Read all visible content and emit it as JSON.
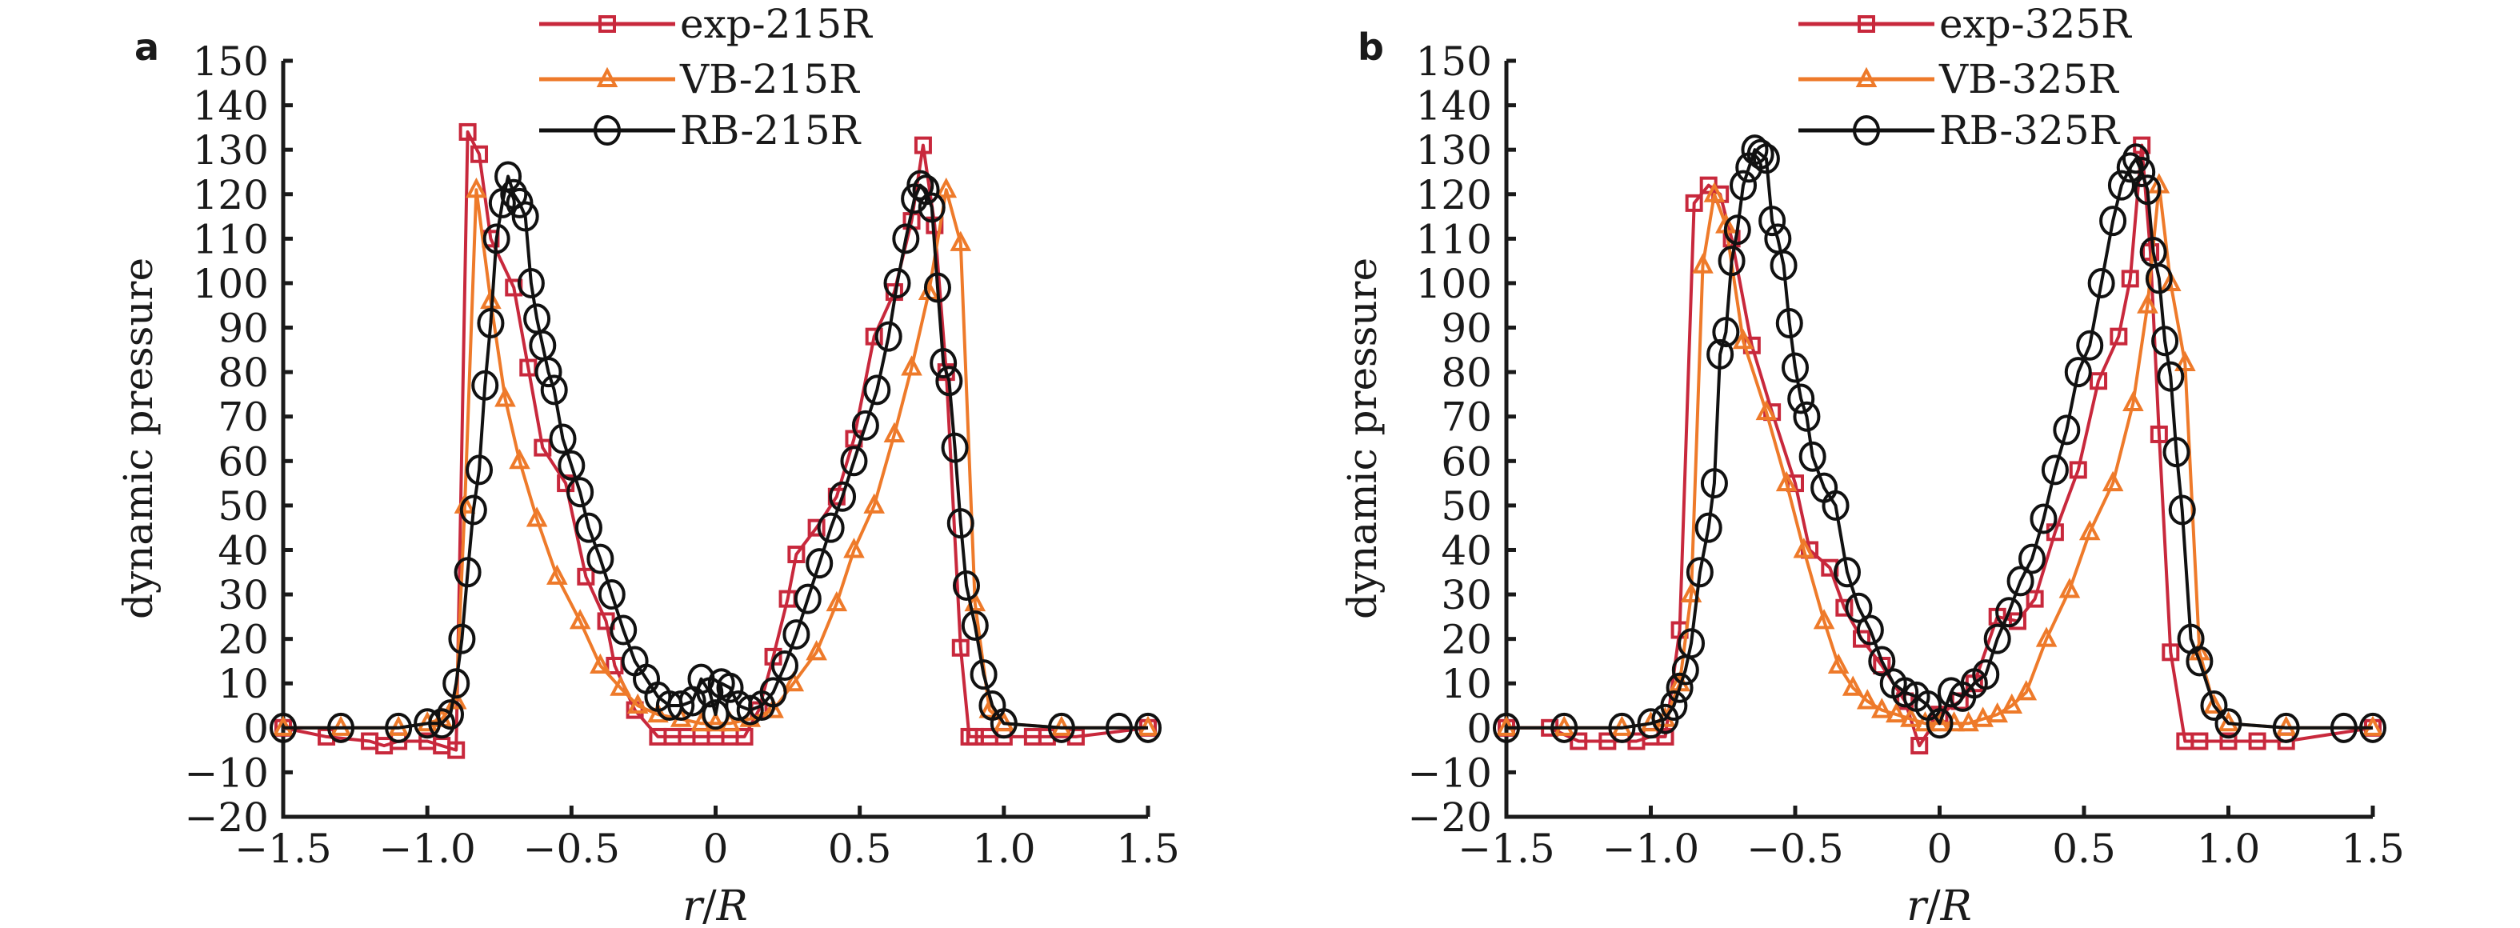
{
  "chart_data": [
    {
      "panel": "a",
      "type": "line",
      "title": "",
      "xlabel": "r/R",
      "ylabel": "dynamic pressure",
      "xlim": [
        -1.5,
        1.5
      ],
      "ylim": [
        -20,
        150
      ],
      "xticks": [
        -1.5,
        -1.0,
        -0.5,
        0,
        0.5,
        1.0,
        1.5
      ],
      "xtick_labels": [
        "−1.5",
        "−1.0",
        "−0.5",
        "0",
        "0.5",
        "1.0",
        "1.5"
      ],
      "yticks": [
        -20,
        -10,
        0,
        10,
        20,
        30,
        40,
        50,
        60,
        70,
        80,
        90,
        100,
        110,
        120,
        130,
        140,
        150
      ],
      "ytick_labels": [
        "−20",
        "−10",
        "0",
        "10",
        "20",
        "30",
        "40",
        "50",
        "60",
        "70",
        "80",
        "90",
        "100",
        "110",
        "120",
        "130",
        "140",
        "150"
      ],
      "grid": false,
      "legend_position": "top-center",
      "series": [
        {
          "name": "exp-215R",
          "color": "#c8283c",
          "marker": "square",
          "x": [
            -1.5,
            -1.35,
            -1.2,
            -1.15,
            -1.1,
            -1.0,
            -0.95,
            -0.9,
            -0.86,
            -0.82,
            -0.78,
            -0.7,
            -0.65,
            -0.6,
            -0.52,
            -0.45,
            -0.38,
            -0.35,
            -0.28,
            -0.2,
            -0.15,
            -0.1,
            -0.05,
            0.0,
            0.05,
            0.1,
            0.15,
            0.2,
            0.25,
            0.28,
            0.35,
            0.42,
            0.48,
            0.55,
            0.62,
            0.68,
            0.72,
            0.76,
            0.8,
            0.85,
            0.88,
            0.9,
            0.95,
            1.0,
            1.1,
            1.15,
            1.25,
            1.5
          ],
          "y": [
            0,
            -2,
            -3,
            -4,
            -3,
            -3,
            -4,
            -5,
            134,
            129,
            110,
            99,
            81,
            63,
            55,
            34,
            24,
            14,
            4,
            -2,
            -2,
            -2,
            -2,
            -2,
            -2,
            -2,
            4,
            16,
            29,
            39,
            45,
            52,
            65,
            88,
            98,
            114,
            131,
            113,
            80,
            18,
            -2,
            -2,
            -2,
            -2,
            -2,
            -2,
            -2,
            0
          ]
        },
        {
          "name": "VB-215R",
          "color": "#ee7a2a",
          "marker": "triangle",
          "x": [
            -1.5,
            -1.3,
            -1.1,
            -1.0,
            -0.95,
            -0.9,
            -0.87,
            -0.83,
            -0.78,
            -0.73,
            -0.68,
            -0.62,
            -0.55,
            -0.47,
            -0.4,
            -0.33,
            -0.27,
            -0.2,
            -0.12,
            -0.05,
            0.0,
            0.05,
            0.12,
            0.2,
            0.27,
            0.35,
            0.42,
            0.48,
            0.55,
            0.62,
            0.68,
            0.74,
            0.8,
            0.85,
            0.9,
            0.95,
            1.0,
            1.2,
            1.5
          ],
          "y": [
            0,
            0,
            0,
            1,
            2,
            6,
            50,
            121,
            96,
            74,
            60,
            47,
            34,
            24,
            14,
            9,
            5,
            3,
            2,
            1,
            1,
            1,
            2,
            4,
            10,
            17,
            28,
            40,
            50,
            66,
            81,
            98,
            121,
            109,
            28,
            4,
            1,
            0,
            0
          ]
        },
        {
          "name": "RB-215R",
          "color": "#111111",
          "marker": "circle",
          "x": [
            -1.5,
            -1.3,
            -1.1,
            -1.0,
            -0.95,
            -0.92,
            -0.9,
            -0.88,
            -0.86,
            -0.84,
            -0.82,
            -0.8,
            -0.78,
            -0.76,
            -0.74,
            -0.72,
            -0.7,
            -0.68,
            -0.66,
            -0.64,
            -0.62,
            -0.6,
            -0.58,
            -0.56,
            -0.53,
            -0.5,
            -0.47,
            -0.44,
            -0.4,
            -0.36,
            -0.32,
            -0.28,
            -0.24,
            -0.2,
            -0.16,
            -0.12,
            -0.08,
            -0.05,
            -0.02,
            0.0,
            0.02,
            0.05,
            0.08,
            0.12,
            0.16,
            0.2,
            0.24,
            0.28,
            0.32,
            0.36,
            0.4,
            0.44,
            0.48,
            0.52,
            0.56,
            0.6,
            0.63,
            0.66,
            0.69,
            0.71,
            0.73,
            0.75,
            0.77,
            0.79,
            0.81,
            0.83,
            0.85,
            0.87,
            0.9,
            0.93,
            0.96,
            1.0,
            1.2,
            1.4,
            1.5
          ],
          "y": [
            0,
            0,
            0,
            1,
            1,
            3,
            10,
            20,
            35,
            49,
            58,
            77,
            91,
            110,
            118,
            124,
            120,
            118,
            115,
            100,
            92,
            86,
            80,
            76,
            65,
            59,
            53,
            45,
            38,
            30,
            22,
            15,
            11,
            7,
            5,
            5,
            6,
            11,
            8,
            3,
            10,
            9,
            5,
            4,
            5,
            8,
            14,
            21,
            29,
            37,
            45,
            52,
            60,
            68,
            76,
            88,
            100,
            110,
            119,
            122,
            121,
            117,
            99,
            82,
            78,
            63,
            46,
            32,
            23,
            12,
            5,
            1,
            0,
            0,
            0
          ]
        }
      ]
    },
    {
      "panel": "b",
      "type": "line",
      "title": "",
      "xlabel": "r/R",
      "ylabel": "dynamic pressure",
      "xlim": [
        -1.5,
        1.5
      ],
      "ylim": [
        -20,
        150
      ],
      "xticks": [
        -1.5,
        -1.0,
        -0.5,
        0,
        0.5,
        1.0,
        1.5
      ],
      "xtick_labels": [
        "−1.5",
        "−1.0",
        "−0.5",
        "0",
        "0.5",
        "1.0",
        "1.5"
      ],
      "yticks": [
        -20,
        -10,
        0,
        10,
        20,
        30,
        40,
        50,
        60,
        70,
        80,
        90,
        100,
        110,
        120,
        130,
        140,
        150
      ],
      "ytick_labels": [
        "−20",
        "−10",
        "0",
        "10",
        "20",
        "30",
        "40",
        "50",
        "60",
        "70",
        "80",
        "90",
        "100",
        "110",
        "120",
        "130",
        "140",
        "150"
      ],
      "grid": false,
      "legend_position": "top-center",
      "series": [
        {
          "name": "exp-325R",
          "color": "#c8283c",
          "marker": "square",
          "x": [
            -1.5,
            -1.35,
            -1.25,
            -1.15,
            -1.05,
            -1.0,
            -0.95,
            -0.9,
            -0.85,
            -0.8,
            -0.76,
            -0.72,
            -0.65,
            -0.58,
            -0.5,
            -0.45,
            -0.38,
            -0.33,
            -0.27,
            -0.2,
            -0.12,
            -0.07,
            0.0,
            0.07,
            0.12,
            0.2,
            0.27,
            0.33,
            0.4,
            0.48,
            0.55,
            0.62,
            0.66,
            0.7,
            0.73,
            0.76,
            0.8,
            0.85,
            0.9,
            1.0,
            1.1,
            1.2,
            1.5
          ],
          "y": [
            0,
            0,
            -3,
            -3,
            -3,
            -2,
            -2,
            22,
            118,
            122,
            120,
            110,
            86,
            71,
            55,
            40,
            36,
            27,
            20,
            14,
            6,
            -4,
            3,
            6,
            10,
            25,
            24,
            29,
            44,
            58,
            78,
            88,
            101,
            131,
            107,
            66,
            17,
            -3,
            -3,
            -3,
            -3,
            -3,
            0
          ]
        },
        {
          "name": "VB-325R",
          "color": "#ee7a2a",
          "marker": "triangle",
          "x": [
            -1.5,
            -1.3,
            -1.1,
            -1.0,
            -0.95,
            -0.9,
            -0.86,
            -0.82,
            -0.78,
            -0.74,
            -0.68,
            -0.6,
            -0.53,
            -0.47,
            -0.4,
            -0.35,
            -0.3,
            -0.25,
            -0.2,
            -0.15,
            -0.1,
            -0.05,
            0.0,
            0.05,
            0.1,
            0.15,
            0.2,
            0.25,
            0.3,
            0.37,
            0.45,
            0.52,
            0.6,
            0.67,
            0.72,
            0.76,
            0.8,
            0.85,
            0.9,
            0.95,
            1.0,
            1.2,
            1.5
          ],
          "y": [
            0,
            0,
            0,
            1,
            2,
            10,
            30,
            104,
            120,
            113,
            87,
            71,
            55,
            40,
            24,
            14,
            9,
            6,
            4,
            3,
            2,
            1,
            1,
            1,
            1,
            2,
            3,
            5,
            8,
            20,
            31,
            44,
            55,
            73,
            95,
            122,
            100,
            82,
            17,
            5,
            1,
            0,
            0
          ]
        },
        {
          "name": "RB-325R",
          "color": "#111111",
          "marker": "circle",
          "x": [
            -1.5,
            -1.3,
            -1.1,
            -1.0,
            -0.95,
            -0.92,
            -0.9,
            -0.88,
            -0.86,
            -0.83,
            -0.8,
            -0.78,
            -0.76,
            -0.74,
            -0.72,
            -0.7,
            -0.68,
            -0.66,
            -0.64,
            -0.62,
            -0.6,
            -0.58,
            -0.56,
            -0.54,
            -0.52,
            -0.5,
            -0.48,
            -0.46,
            -0.44,
            -0.4,
            -0.36,
            -0.32,
            -0.28,
            -0.24,
            -0.2,
            -0.16,
            -0.12,
            -0.08,
            -0.04,
            0.0,
            0.04,
            0.08,
            0.12,
            0.16,
            0.2,
            0.24,
            0.28,
            0.32,
            0.36,
            0.4,
            0.44,
            0.48,
            0.52,
            0.56,
            0.6,
            0.63,
            0.66,
            0.68,
            0.7,
            0.72,
            0.74,
            0.76,
            0.78,
            0.8,
            0.82,
            0.84,
            0.87,
            0.9,
            0.95,
            1.0,
            1.2,
            1.4,
            1.5
          ],
          "y": [
            0,
            0,
            0,
            1,
            2,
            5,
            9,
            13,
            19,
            35,
            45,
            55,
            84,
            89,
            105,
            112,
            122,
            126,
            130,
            129,
            128,
            114,
            110,
            104,
            91,
            81,
            74,
            70,
            61,
            54,
            50,
            35,
            27,
            22,
            15,
            10,
            8,
            7,
            5,
            1,
            8,
            7,
            10,
            12,
            20,
            26,
            33,
            38,
            47,
            58,
            67,
            80,
            86,
            100,
            114,
            122,
            126,
            128,
            125,
            121,
            107,
            101,
            87,
            79,
            62,
            49,
            20,
            15,
            5,
            1,
            0,
            0,
            0
          ]
        }
      ]
    }
  ],
  "panels": [
    {
      "letter": "a",
      "ylabel": "dynamic pressure",
      "xlabel_italic_r": "r",
      "xlabel_slash": "/",
      "xlabel_italic_R": "R"
    },
    {
      "letter": "b",
      "ylabel": "dynamic pressure",
      "xlabel_italic_r": "r",
      "xlabel_slash": "/",
      "xlabel_italic_R": "R"
    }
  ]
}
